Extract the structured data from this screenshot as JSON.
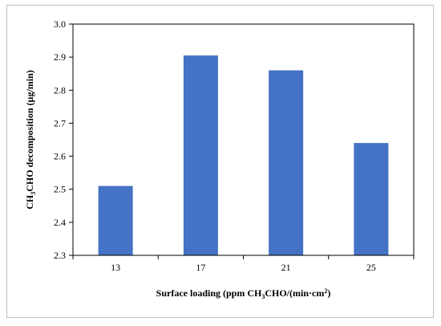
{
  "chart_data": {
    "type": "bar",
    "categories": [
      "13",
      "17",
      "21",
      "25"
    ],
    "values": [
      2.51,
      2.905,
      2.86,
      2.64
    ],
    "title": "",
    "xlabel": "Surface loading (ppm CH3CHO/(min·cm2)",
    "ylabel": "CH3CHO decomposition (µg/min)",
    "xlabel_parts": {
      "pre": "Surface loading (ppm CH",
      "sub1": "3",
      "mid": "CHO/(min·cm",
      "sup": "2",
      "post": ")"
    },
    "ylabel_parts": {
      "pre": "CH",
      "sub": "3",
      "post": "CHO decomposition (µg/min)"
    },
    "ylim": [
      2.3,
      3.0
    ],
    "yticks": [
      "2.3",
      "2.4",
      "2.5",
      "2.6",
      "2.7",
      "2.8",
      "2.9",
      "3.0"
    ],
    "grid": false,
    "legend": "none",
    "bar_color": "#4472c4"
  }
}
